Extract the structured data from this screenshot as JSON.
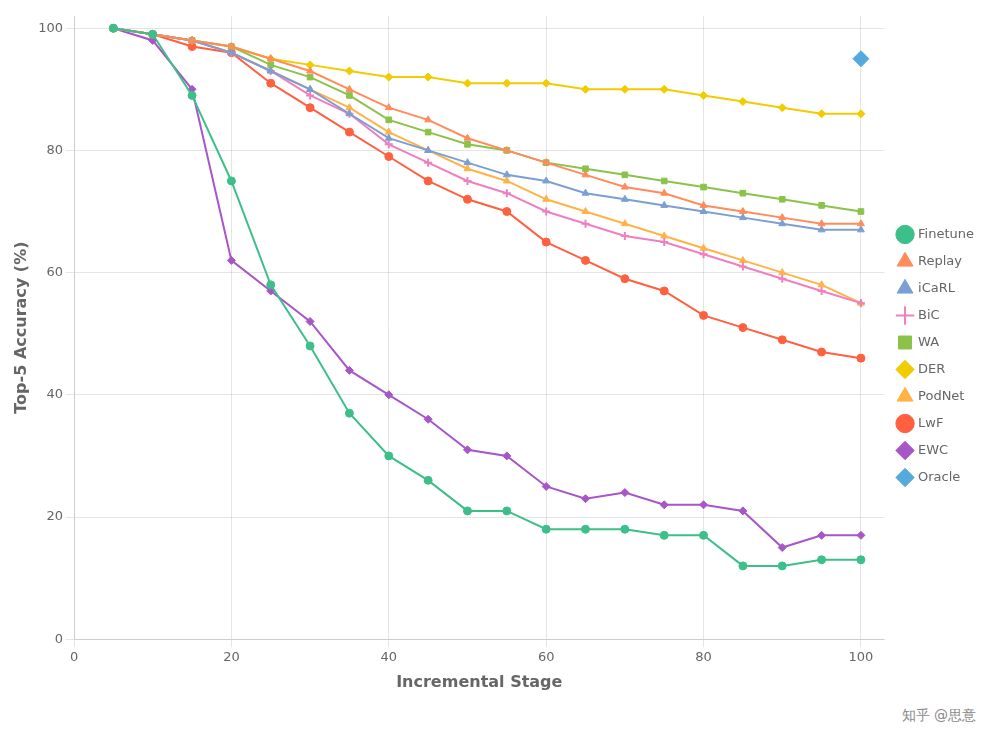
{
  "chart_data": {
    "type": "line",
    "xlabel": "Incremental Stage",
    "ylabel": "Top-5 Accuracy (%)",
    "xlim": [
      0,
      103
    ],
    "ylim": [
      0,
      102
    ],
    "xticks": [
      0,
      20,
      40,
      60,
      80,
      100
    ],
    "yticks": [
      0,
      20,
      40,
      60,
      80,
      100
    ],
    "grid": true,
    "legend": "right",
    "annotations": [
      "知乎 @思意"
    ],
    "series": [
      {
        "name": "Finetune",
        "color": "#3dbf8a",
        "marker": "circle",
        "line_style": "solid",
        "x": [
          5,
          10,
          15,
          20,
          25,
          30,
          35,
          40,
          45,
          50,
          55,
          60,
          65,
          70,
          75,
          80,
          85,
          90,
          95,
          100
        ],
        "values": [
          100,
          99,
          89,
          75,
          58,
          48,
          37,
          30,
          26,
          21,
          21,
          18,
          18,
          18,
          17,
          17,
          12,
          12,
          13,
          13
        ]
      },
      {
        "name": "Replay",
        "color": "#ff8c5a",
        "marker": "triangle",
        "line_style": "solid",
        "x": [
          5,
          10,
          15,
          20,
          25,
          30,
          35,
          40,
          45,
          50,
          55,
          60,
          65,
          70,
          75,
          80,
          85,
          90,
          95,
          100
        ],
        "values": [
          100,
          99,
          98,
          97,
          95,
          93,
          90,
          87,
          85,
          82,
          80,
          78,
          76,
          74,
          73,
          71,
          70,
          69,
          68,
          68
        ]
      },
      {
        "name": "iCaRL",
        "color": "#7b9fd4",
        "marker": "triangle",
        "line_style": "solid",
        "x": [
          5,
          10,
          15,
          20,
          25,
          30,
          35,
          40,
          45,
          50,
          55,
          60,
          65,
          70,
          75,
          80,
          85,
          90,
          95,
          100
        ],
        "values": [
          100,
          99,
          98,
          96,
          93,
          90,
          86,
          82,
          80,
          78,
          76,
          75,
          73,
          72,
          71,
          70,
          69,
          68,
          67,
          67
        ]
      },
      {
        "name": "BiC",
        "color": "#f07fbf",
        "marker": "plus",
        "line_style": "solid",
        "x": [
          5,
          10,
          15,
          20,
          25,
          30,
          35,
          40,
          45,
          50,
          55,
          60,
          65,
          70,
          75,
          80,
          85,
          90,
          95,
          100
        ],
        "values": [
          100,
          99,
          98,
          96,
          93,
          89,
          86,
          81,
          78,
          75,
          73,
          70,
          68,
          66,
          65,
          63,
          61,
          59,
          57,
          55
        ]
      },
      {
        "name": "WA",
        "color": "#8bc34a",
        "marker": "square",
        "line_style": "solid",
        "x": [
          5,
          10,
          15,
          20,
          25,
          30,
          35,
          40,
          45,
          50,
          55,
          60,
          65,
          70,
          75,
          80,
          85,
          90,
          95,
          100
        ],
        "values": [
          100,
          99,
          98,
          97,
          94,
          92,
          89,
          85,
          83,
          81,
          80,
          78,
          77,
          76,
          75,
          74,
          73,
          72,
          71,
          70
        ]
      },
      {
        "name": "DER",
        "color": "#f0cc00",
        "marker": "diamond",
        "line_style": "solid",
        "x": [
          5,
          10,
          15,
          20,
          25,
          30,
          35,
          40,
          45,
          50,
          55,
          60,
          65,
          70,
          75,
          80,
          85,
          90,
          95,
          100
        ],
        "values": [
          100,
          99,
          98,
          97,
          95,
          94,
          93,
          92,
          92,
          91,
          91,
          91,
          90,
          90,
          90,
          89,
          88,
          87,
          86,
          86
        ]
      },
      {
        "name": "PodNet",
        "color": "#ffb347",
        "marker": "triangle",
        "line_style": "solid",
        "x": [
          5,
          10,
          15,
          20,
          25,
          30,
          35,
          40,
          45,
          50,
          55,
          60,
          65,
          70,
          75,
          80,
          85,
          90,
          95,
          100
        ],
        "values": [
          100,
          99,
          98,
          96,
          93,
          90,
          87,
          83,
          80,
          77,
          75,
          72,
          70,
          68,
          66,
          64,
          62,
          60,
          58,
          55
        ]
      },
      {
        "name": "LwF",
        "color": "#ff6040",
        "marker": "circle",
        "line_style": "solid",
        "x": [
          5,
          10,
          15,
          20,
          25,
          30,
          35,
          40,
          45,
          50,
          55,
          60,
          65,
          70,
          75,
          80,
          85,
          90,
          95,
          100
        ],
        "values": [
          100,
          99,
          97,
          96,
          91,
          87,
          83,
          79,
          75,
          72,
          70,
          65,
          62,
          59,
          57,
          53,
          51,
          49,
          47,
          46
        ]
      },
      {
        "name": "EWC",
        "color": "#a855c8",
        "marker": "diamond",
        "line_style": "solid",
        "x": [
          5,
          10,
          15,
          20,
          25,
          30,
          35,
          40,
          45,
          50,
          55,
          60,
          65,
          70,
          75,
          80,
          85,
          90,
          95,
          100
        ],
        "values": [
          100,
          98,
          90,
          62,
          57,
          52,
          44,
          40,
          36,
          31,
          30,
          25,
          23,
          24,
          22,
          22,
          21,
          15,
          17,
          17
        ]
      },
      {
        "name": "Oracle",
        "color": "#55aadd",
        "marker": "diamond",
        "line_style": "none",
        "x": [
          100
        ],
        "values": [
          95
        ]
      }
    ]
  }
}
